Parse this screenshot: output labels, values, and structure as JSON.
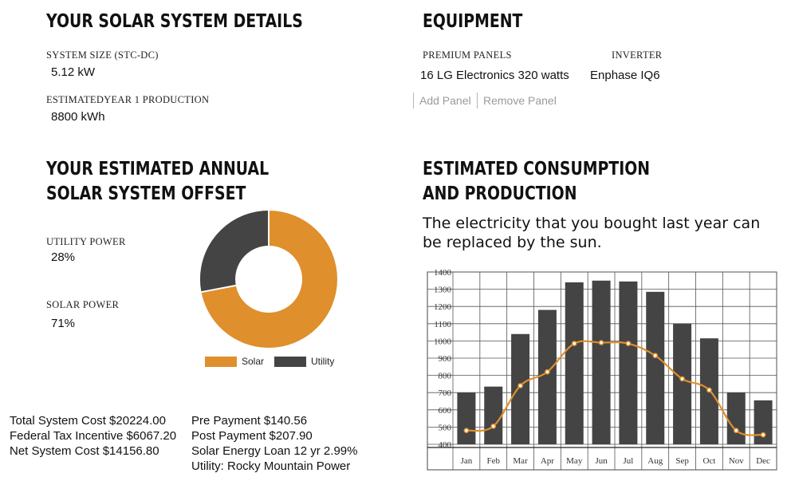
{
  "details": {
    "title": "YOUR SOLAR SYSTEM DETAILS",
    "system_size_label": "SYSTEM SIZE (STC-DC)",
    "system_size_value": "5.12 kW",
    "production_label": "ESTIMATEDYEAR 1 PRODUCTION",
    "production_value": "8800 kWh"
  },
  "equipment": {
    "title": "EQUIPMENT",
    "panels_label": "PREMIUM PANELS",
    "panels_value": "16 LG Electronics 320 watts",
    "inverter_label": "INVERTER",
    "inverter_value": "Enphase IQ6",
    "add_panel": "Add Panel",
    "remove_panel": "Remove Panel"
  },
  "offset": {
    "title_line1": "YOUR ESTIMATED ANNUAL",
    "title_line2": "SOLAR SYSTEM OFFSET",
    "utility_label": "UTILITY POWER",
    "utility_value": "28%",
    "solar_label": "SOLAR POWER",
    "solar_value": "71%",
    "legend_solar": "Solar",
    "legend_utility": "Utility",
    "solar_fraction": 0.71,
    "utility_fraction": 0.28,
    "solar_color": "#df8f2b",
    "utility_color": "#444444"
  },
  "consumption": {
    "title_line1": "ESTIMATED CONSUMPTION",
    "title_line2": "AND PRODUCTION",
    "subtitle_line1": "The electricity that you bought last year can",
    "subtitle_line2": "be replaced by the sun."
  },
  "costs": {
    "total": "Total System Cost $20224.00",
    "federal": "Federal Tax Incentive $6067.20",
    "net": "Net System Cost $14156.80",
    "pre": "Pre Payment $140.56",
    "post": "Post Payment $207.90",
    "loan": "Solar Energy Loan 12 yr 2.99%",
    "utility": "Utility: Rocky Mountain Power"
  },
  "chart_data": {
    "type": "bar",
    "categories": [
      "Jan",
      "Feb",
      "Mar",
      "Apr",
      "May",
      "Jun",
      "Jul",
      "Aug",
      "Sep",
      "Oct",
      "Nov",
      "Dec"
    ],
    "series": [
      {
        "values": [
          700,
          735,
          1040,
          1180,
          1340,
          1350,
          1345,
          1285,
          1100,
          1015,
          700,
          655
        ],
        "color": "#444444",
        "kind": "bar"
      },
      {
        "values": [
          480,
          505,
          740,
          820,
          985,
          990,
          985,
          915,
          780,
          715,
          480,
          455
        ],
        "color": "#df8f2b",
        "kind": "line"
      }
    ],
    "yticks": [
      400,
      500,
      600,
      700,
      800,
      900,
      1000,
      1100,
      1200,
      1300,
      1400
    ],
    "ylim": [
      400,
      1400
    ],
    "grid": true
  }
}
